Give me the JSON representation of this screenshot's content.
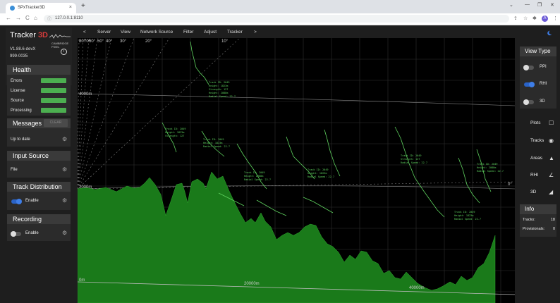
{
  "browser": {
    "tab_title": "SPxTracker3D",
    "url": "127.0.0.1:8110",
    "new_tab": "+",
    "tab_close": "×",
    "win_min": "⌄",
    "win_min2": "—",
    "win_max": "❐",
    "win_close": "✕",
    "back": "←",
    "forward": "→",
    "reload": "C",
    "home": "⌂",
    "info": "ⓘ",
    "profile": "A"
  },
  "app": {
    "logo_text": "Tracker",
    "logo_3d": "3D",
    "logo_sub": "CAMBRIDGE PIXEL",
    "version": "V1.88.6-devX",
    "serial": "999-0035",
    "info_icon": "i"
  },
  "health": {
    "title": "Health",
    "rows": [
      {
        "label": "Errors"
      },
      {
        "label": "License"
      },
      {
        "label": "Source"
      },
      {
        "label": "Processing"
      }
    ]
  },
  "messages": {
    "title": "Messages",
    "clear": "CLEAR",
    "status": "Up to date"
  },
  "input_source": {
    "title": "Input Source",
    "value": "File"
  },
  "track_distribution": {
    "title": "Track Distribution",
    "enable": "Enable"
  },
  "recording": {
    "title": "Recording",
    "enable": "Enable"
  },
  "menu": {
    "back": "<",
    "forward": ">",
    "items": [
      "Server",
      "View",
      "Network Source",
      "Filter",
      "Adjust",
      "Tracker"
    ]
  },
  "map": {
    "angles": [
      "80°",
      "70°",
      "60°",
      "50°",
      "40°",
      "30°",
      "20°",
      "10°",
      "0°"
    ],
    "alt_labels": [
      "4000m",
      "2000m"
    ],
    "range_labels": [
      "0m",
      "20000m",
      "40000m"
    ],
    "track_labels": [
      "Track ID: 2049",
      "Height: 1823m",
      "Strength: 127",
      "Height: 2088m",
      "Radial Speed: 22.7"
    ]
  },
  "view_type": {
    "title": "View Type",
    "options": [
      {
        "label": "PPI",
        "on": false
      },
      {
        "label": "RHI",
        "on": true
      },
      {
        "label": "3D",
        "on": false
      }
    ]
  },
  "layers": [
    {
      "label": "Plots",
      "icon": "☐"
    },
    {
      "label": "Tracks",
      "icon": "◉"
    },
    {
      "label": "Areas",
      "icon": "▲"
    },
    {
      "label": "RHI",
      "icon": "∠"
    },
    {
      "label": "3D",
      "icon": "◢"
    }
  ],
  "info": {
    "title": "Info",
    "tracks_label": "Tracks:",
    "tracks_value": "18",
    "provisional_label": "Provisionals:",
    "provisional_value": "0"
  },
  "colors": {
    "accent": "#3e7ee8",
    "health_ok": "#4caf50",
    "terrain": "#1a7a1a",
    "track": "#5fd35f"
  }
}
